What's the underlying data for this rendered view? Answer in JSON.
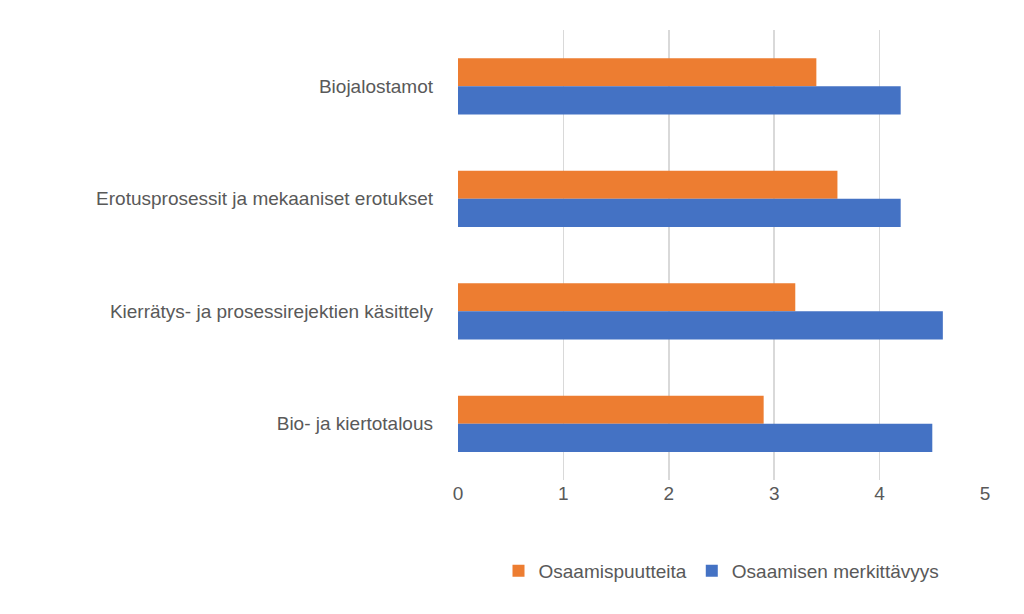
{
  "chart_data": {
    "type": "bar",
    "orientation": "horizontal",
    "categories": [
      "Biojalostamot",
      "Erotusprosessit ja mekaaniset erotukset",
      "Kierrätys- ja prosessirejektien käsittely",
      "Bio- ja kiertotalous"
    ],
    "series": [
      {
        "name": "Osaamispuutteita",
        "color": "#ed7d31",
        "values": [
          3.4,
          3.6,
          3.2,
          2.9
        ]
      },
      {
        "name": "Osaamisen merkittävyys",
        "color": "#4472c4",
        "values": [
          4.2,
          4.2,
          4.6,
          4.5
        ]
      }
    ],
    "xlim": [
      0,
      5
    ],
    "xticks": [
      0,
      1,
      2,
      3,
      4,
      5
    ],
    "grid": true,
    "legend": "bottom"
  }
}
